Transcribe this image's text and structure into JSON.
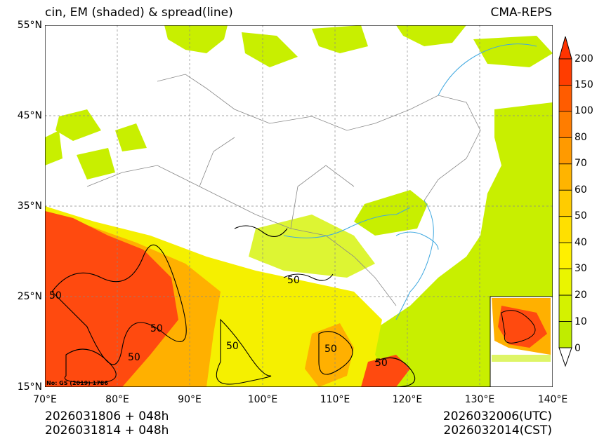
{
  "header": {
    "title_left": "cin, EM (shaded) & spread(line)",
    "title_right": "CMA-REPS"
  },
  "map": {
    "lat_labels": [
      "55°N",
      "45°N",
      "35°N",
      "25°N",
      "15°N"
    ],
    "lon_labels": [
      "70°E",
      "80°E",
      "90°E",
      "100°E",
      "110°E",
      "120°E",
      "130°E",
      "140°E"
    ],
    "source_note": "No: GS (2019) 1786",
    "contour_labels": [
      "50",
      "50",
      "50",
      "50",
      "50",
      "50",
      "50"
    ],
    "colors": {
      "land_low": "#c8ef00",
      "mid": "#f5f000",
      "orange": "#ffb000",
      "red": "#ff4a0f",
      "river": "#3fa8e0",
      "border": "#888888",
      "ocean": "#ffffff"
    }
  },
  "colorbar": {
    "levels": [
      "200",
      "150",
      "100",
      "80",
      "70",
      "60",
      "50",
      "40",
      "30",
      "20",
      "10",
      "0"
    ],
    "colors": [
      "#ff3d00",
      "#ff5c00",
      "#ff7d00",
      "#ff9a00",
      "#ffb400",
      "#ffcc00",
      "#ffe000",
      "#fff000",
      "#eaf500",
      "#d4f200",
      "#c0ec00"
    ],
    "top_arrow_color": "#ff3300",
    "bottom_arrow_color": "#ffffff"
  },
  "footer": {
    "init_utc": "2026031806  +  048h",
    "init_cst": "2026031814  +  048h",
    "valid_utc": "2026032006(UTC)",
    "valid_cst": "2026032014(CST)"
  }
}
